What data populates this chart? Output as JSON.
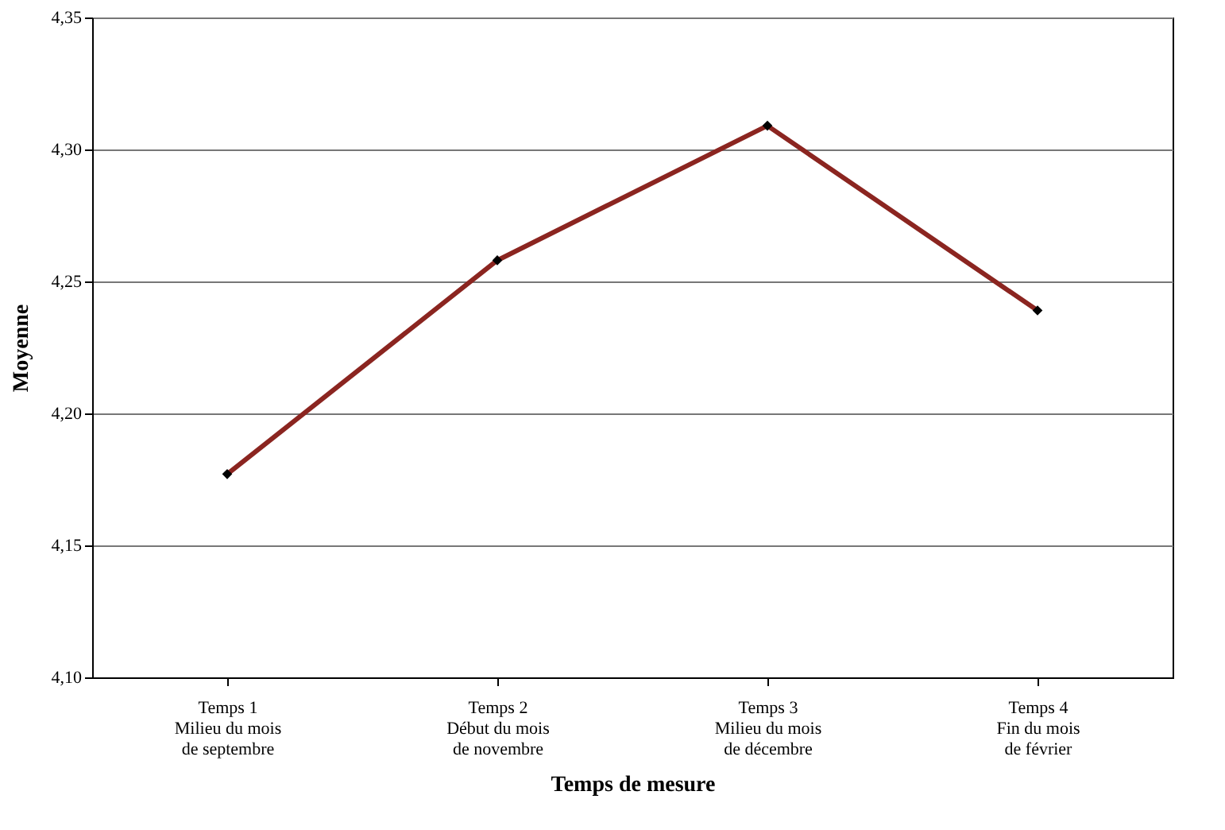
{
  "chart_data": {
    "type": "line",
    "xlabel": "Temps de mesure",
    "ylabel": "Moyenne",
    "categories": [
      "Temps 1\nMilieu du mois\nde septembre",
      "Temps 2\nDébut du mois\nde novembre",
      "Temps 3\nMilieu du mois\nde décembre",
      "Temps 4\nFin du mois\nde février"
    ],
    "series": [
      {
        "color": "#8b2520",
        "values": [
          4.177,
          4.258,
          4.309,
          4.239
        ]
      }
    ],
    "ylim": [
      4.1,
      4.35
    ],
    "yticks": [
      {
        "value": 4.1,
        "label": "4,10"
      },
      {
        "value": 4.15,
        "label": "4,15"
      },
      {
        "value": 4.2,
        "label": "4,20"
      },
      {
        "value": 4.25,
        "label": "4,25"
      },
      {
        "value": 4.3,
        "label": "4,30"
      },
      {
        "value": 4.35,
        "label": "4,35"
      }
    ],
    "grid": "y",
    "marker": "diamond",
    "line_style": "solid"
  }
}
